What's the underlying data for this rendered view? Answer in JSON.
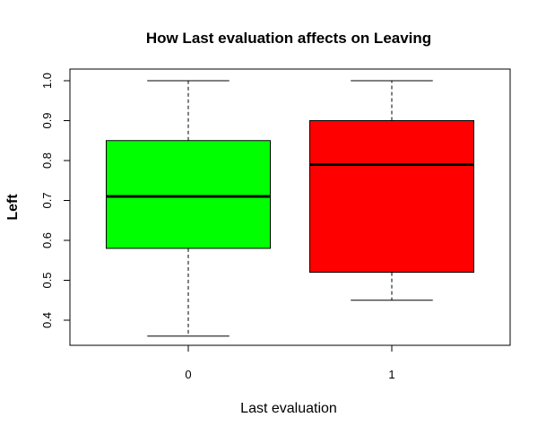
{
  "chart_data": {
    "type": "box",
    "title": "How Last evaluation affects on Leaving",
    "xlabel": "Last evaluation",
    "ylabel": "Left",
    "ylim": [
      0.33,
      1.03
    ],
    "grid": false,
    "yticks": [
      "0.4",
      "0.5",
      "0.6",
      "0.7",
      "0.8",
      "0.9",
      "1.0"
    ],
    "categories": [
      "0",
      "1"
    ],
    "boxes": [
      {
        "category": "0",
        "min": 0.36,
        "q1": 0.58,
        "median": 0.71,
        "q3": 0.85,
        "max": 1.0,
        "color": "#00ff00"
      },
      {
        "category": "1",
        "min": 0.45,
        "q1": 0.52,
        "median": 0.79,
        "q3": 0.9,
        "max": 1.0,
        "color": "#ff0000"
      }
    ]
  }
}
